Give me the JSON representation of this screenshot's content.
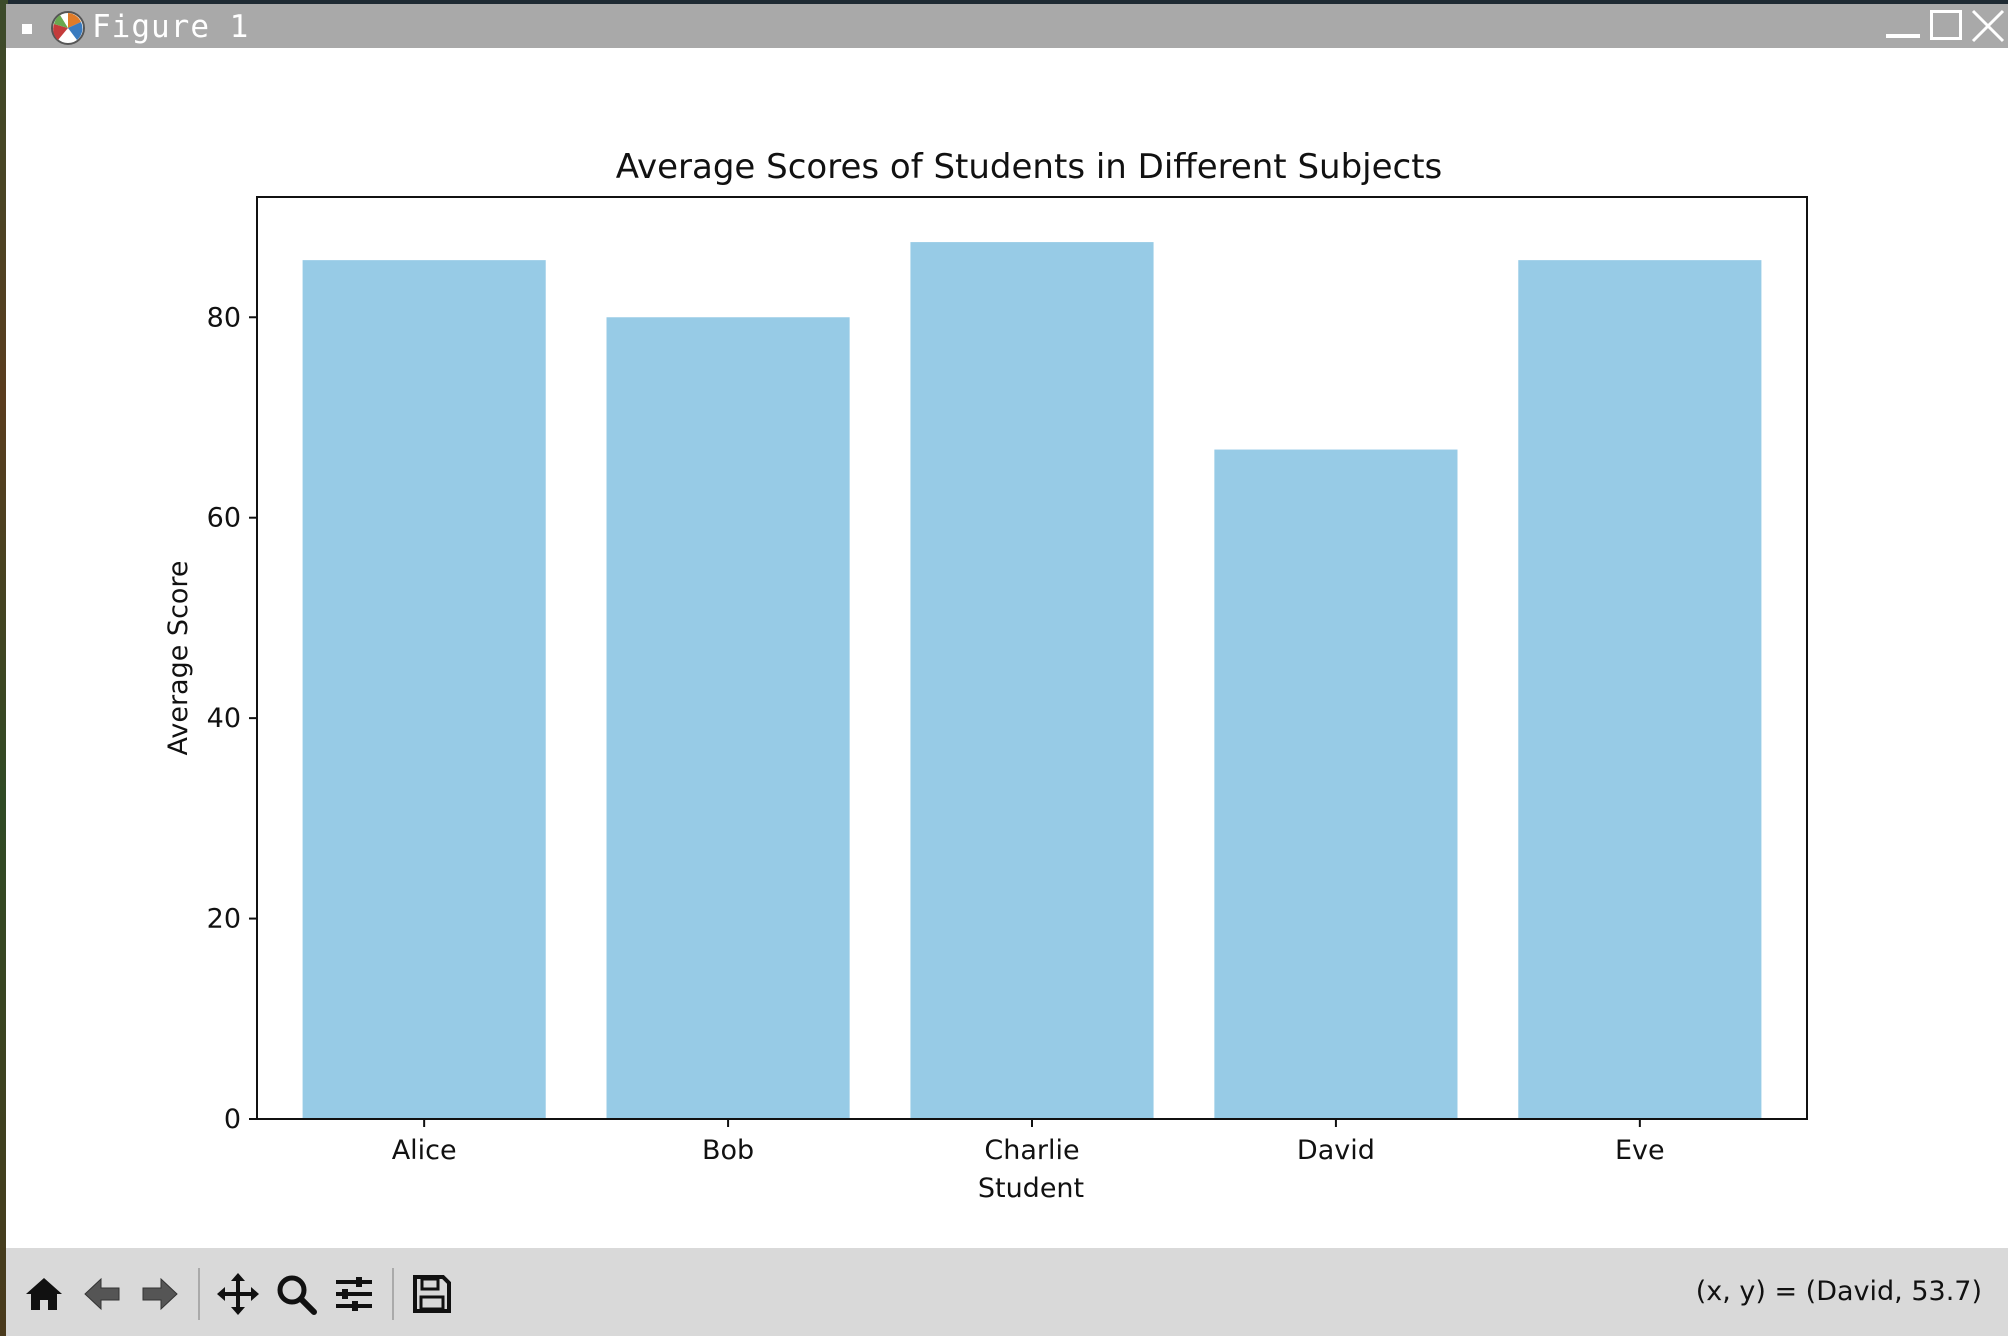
{
  "window": {
    "title": "Figure 1"
  },
  "toolbar": {
    "buttons": [
      {
        "name": "home-icon"
      },
      {
        "name": "back-icon"
      },
      {
        "name": "forward-icon"
      },
      {
        "name": "pan-icon"
      },
      {
        "name": "zoom-icon"
      },
      {
        "name": "configure-subplots-icon"
      },
      {
        "name": "save-icon"
      }
    ],
    "coordinates": "(x, y) = (David, 53.7)"
  },
  "colors": {
    "bar": "#97cbe6",
    "titlebar": "#a9a9a9",
    "toolbar": "#d9d9d9"
  },
  "chart_data": {
    "type": "bar",
    "title": "Average Scores of Students in Different Subjects",
    "xlabel": "Student",
    "ylabel": "Average Score",
    "categories": [
      "Alice",
      "Bob",
      "Charlie",
      "David",
      "Eve"
    ],
    "values": [
      85.7,
      80.0,
      87.5,
      66.8,
      85.7
    ],
    "ylim": [
      0,
      92
    ],
    "yticks": [
      0,
      20,
      40,
      60,
      80
    ],
    "ytick_labels": [
      "0",
      "20",
      "40",
      "60",
      "80"
    ],
    "grid": false,
    "legend": "none"
  }
}
